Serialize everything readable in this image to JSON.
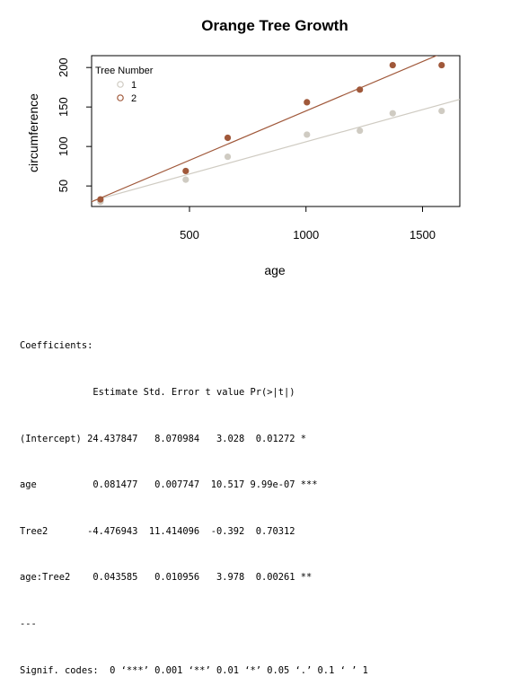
{
  "chart_data": {
    "type": "scatter",
    "title": "Orange Tree Growth",
    "xlabel": "age",
    "ylabel": "circumference",
    "xlim": [
      80,
      1660
    ],
    "ylim": [
      24,
      215
    ],
    "xticks": [
      500,
      1000,
      1500
    ],
    "yticks": [
      50,
      100,
      150,
      200
    ],
    "grid": false,
    "legend": {
      "title": "Tree Number",
      "position": "top-left"
    },
    "series": [
      {
        "name": "1",
        "color": "#cfcbc2",
        "x": [
          118,
          484,
          664,
          1004,
          1231,
          1372,
          1582
        ],
        "y": [
          30,
          58,
          87,
          115,
          120,
          142,
          145
        ],
        "fit": {
          "intercept": 24.437847,
          "slope": 0.081477
        }
      },
      {
        "name": "2",
        "color": "#a0583a",
        "x": [
          118,
          484,
          664,
          1004,
          1231,
          1372,
          1582
        ],
        "y": [
          33,
          69,
          111,
          156,
          172,
          203,
          203
        ],
        "fit": {
          "intercept": 19.960904,
          "slope": 0.125062
        }
      }
    ]
  },
  "coefficients": {
    "heading": "Coefficients:",
    "header": "             Estimate Std. Error t value Pr(>|t|)",
    "rows": [
      "(Intercept) 24.437847   8.070984   3.028  0.01272 *",
      "age          0.081477   0.007747  10.517 9.99e-07 ***",
      "Tree2       -4.476943  11.414096  -0.392  0.70312",
      "age:Tree2    0.043585   0.010956   3.978  0.00261 **"
    ],
    "separator": "---",
    "signif": "Signif. codes:  0 ‘***’ 0.001 ‘**’ 0.01 ‘*’ 0.05 ‘.’ 0.1 ‘ ’ 1"
  }
}
